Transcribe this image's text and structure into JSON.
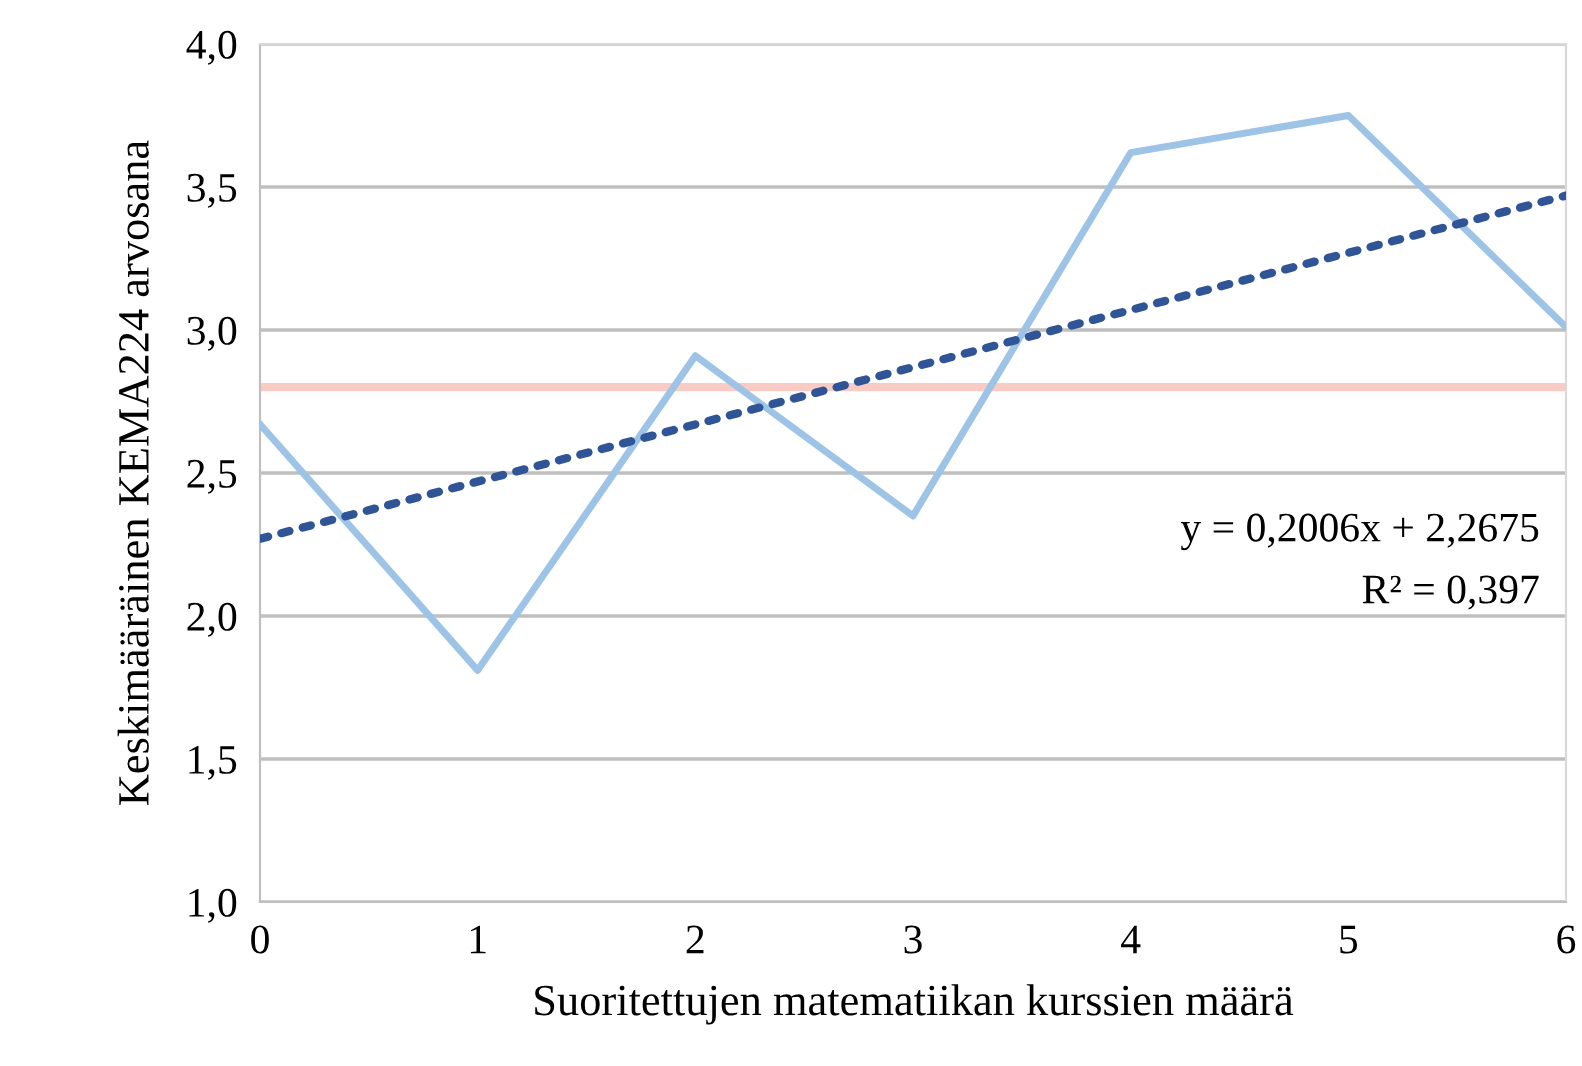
{
  "chart_data": {
    "type": "line",
    "xlabel": "Suoritettujen matematiikan kurssien määrä",
    "ylabel": "Keskimääräinen KEMA224 arvosana",
    "x": [
      0,
      1,
      2,
      3,
      4,
      5,
      6
    ],
    "series": [
      {
        "color": "#9dc3e6",
        "values": [
          2.67,
          1.81,
          2.91,
          2.35,
          3.62,
          3.75,
          3.01
        ],
        "line_style": "solid"
      },
      {
        "color": "#2f5597",
        "x": [
          0,
          6
        ],
        "values": [
          2.27,
          3.47
        ],
        "line_style": "dotted"
      }
    ],
    "ref_lines": [
      {
        "axis": "y",
        "value": 2.8,
        "color": "#f8cbc4"
      }
    ],
    "annotations": [
      "y = 0,2006x + 2,2675",
      "R² = 0,397"
    ],
    "xlim": [
      0,
      6
    ],
    "ylim": [
      1,
      4
    ],
    "xticks": [
      0,
      1,
      2,
      3,
      4,
      5,
      6
    ],
    "yticks": [
      {
        "value": 1,
        "label": "1,0"
      },
      {
        "value": 1.5,
        "label": "1,5"
      },
      {
        "value": 2,
        "label": "2,0"
      },
      {
        "value": 2.5,
        "label": "2,5"
      },
      {
        "value": 3,
        "label": "3,0"
      },
      {
        "value": 3.5,
        "label": "3,5"
      },
      {
        "value": 4,
        "label": "4,0"
      }
    ],
    "grid": "y",
    "legend": false,
    "marker": "none"
  }
}
